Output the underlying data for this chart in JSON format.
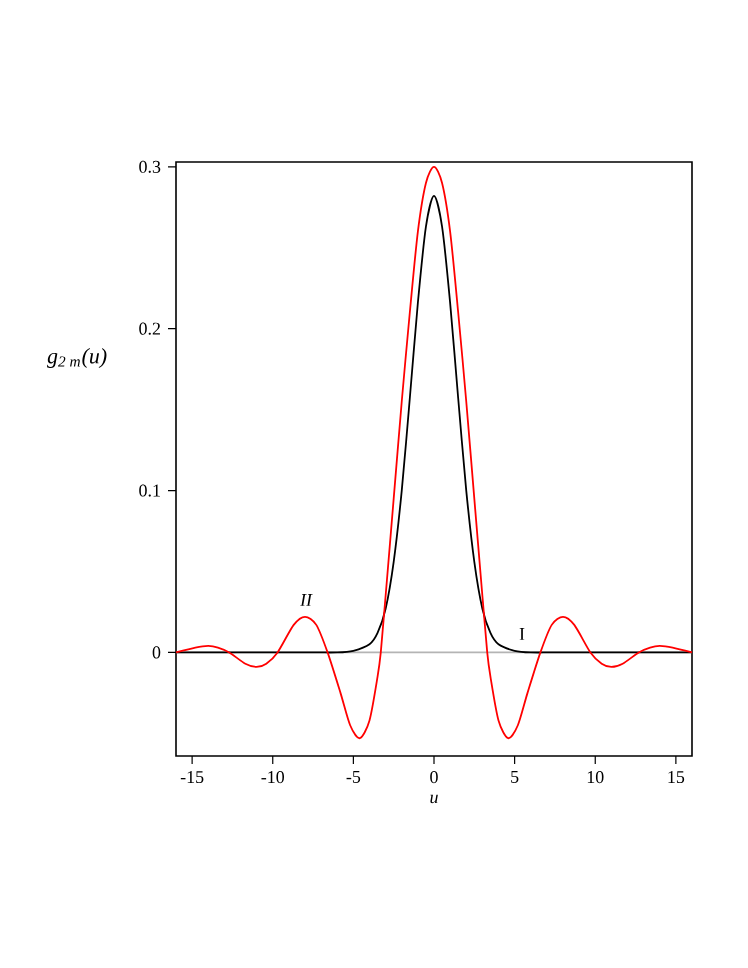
{
  "chart_data": {
    "type": "line",
    "xlabel": "u",
    "ylabel": "g$_{2 m}$(u)",
    "xlim": [
      -16,
      16
    ],
    "ylim": [
      -0.064,
      0.303
    ],
    "xticks": [
      -15,
      -10,
      -5,
      0,
      5,
      10,
      15
    ],
    "yticks": [
      0,
      0.1,
      0.2,
      0.3
    ],
    "grid": false,
    "marker": "none",
    "line_style": "solid",
    "series": [
      {
        "color": "#000000",
        "x": [
          -16,
          -8,
          -6,
          -5,
          -4,
          -3.5,
          -3,
          -2.5,
          -2,
          -1.5,
          -1,
          -0.5,
          0,
          0.5,
          1,
          1.5,
          2,
          2.5,
          3,
          3.5,
          4,
          5,
          6,
          8,
          16
        ],
        "values": [
          0,
          0,
          0,
          0.001,
          0.005,
          0.012,
          0.027,
          0.056,
          0.1,
          0.157,
          0.216,
          0.263,
          0.282,
          0.263,
          0.216,
          0.157,
          0.1,
          0.056,
          0.027,
          0.012,
          0.005,
          0.001,
          0,
          0,
          0
        ]
      },
      {
        "color": "#ff0000",
        "x": [
          -16,
          -14.8,
          -14,
          -13.4,
          -12.7,
          -11.7,
          -11,
          -10.4,
          -9.7,
          -8.7,
          -8,
          -7.3,
          -6.6,
          -5.8,
          -5.2,
          -4.6,
          -4,
          -3.5,
          -3.3,
          -3,
          -2.5,
          -2,
          -1.5,
          -1,
          -0.5,
          0,
          0.5,
          1,
          1.5,
          2,
          2.5,
          3,
          3.3,
          3.5,
          4,
          4.6,
          5.2,
          5.8,
          6.6,
          7.3,
          8,
          8.7,
          9.7,
          10.4,
          11,
          11.7,
          12.7,
          13.4,
          14,
          14.8,
          16
        ],
        "values": [
          0,
          0.003,
          0.004,
          0.003,
          0,
          -0.007,
          -0.009,
          -0.007,
          0,
          0.017,
          0.022,
          0.017,
          0,
          -0.025,
          -0.045,
          -0.053,
          -0.042,
          -0.015,
          0,
          0.035,
          0.095,
          0.155,
          0.21,
          0.26,
          0.29,
          0.3,
          0.29,
          0.26,
          0.21,
          0.155,
          0.095,
          0.035,
          0,
          -0.015,
          -0.042,
          -0.053,
          -0.045,
          -0.025,
          0,
          0.017,
          0.022,
          0.017,
          0,
          -0.007,
          -0.009,
          -0.007,
          0,
          0.003,
          0.004,
          0.003,
          0
        ]
      }
    ],
    "ref_lines": [
      {
        "axis": "y",
        "value": 0,
        "color": "#b4b4b4"
      }
    ],
    "annotations": [
      "II",
      "I"
    ]
  }
}
